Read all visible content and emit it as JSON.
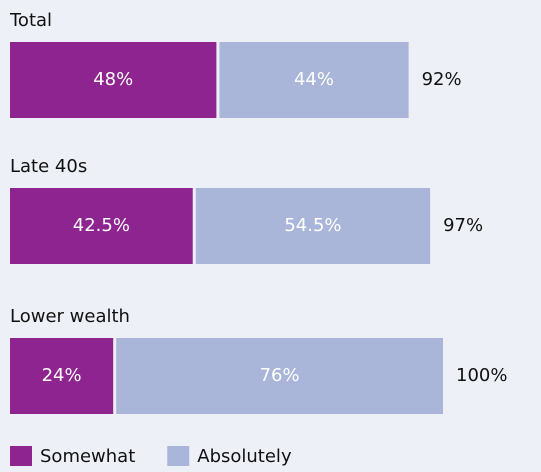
{
  "chart_data": {
    "type": "stacked-bar",
    "categories": [
      "Total",
      "Late 40s",
      "Lower wealth"
    ],
    "series": [
      {
        "name": "Somewhat",
        "color": "#8e2490",
        "values": [
          48,
          42.5,
          24
        ],
        "value_labels": [
          "48%",
          "42.5%",
          "24%"
        ]
      },
      {
        "name": "Absolutely",
        "color": "#a9b6d9",
        "values": [
          44,
          54.5,
          76
        ],
        "value_labels": [
          "44%",
          "54.5%",
          "76%"
        ]
      }
    ],
    "totals": {
      "values": [
        92,
        97,
        100
      ],
      "value_labels": [
        "92%",
        "97%",
        "100%"
      ]
    }
  }
}
